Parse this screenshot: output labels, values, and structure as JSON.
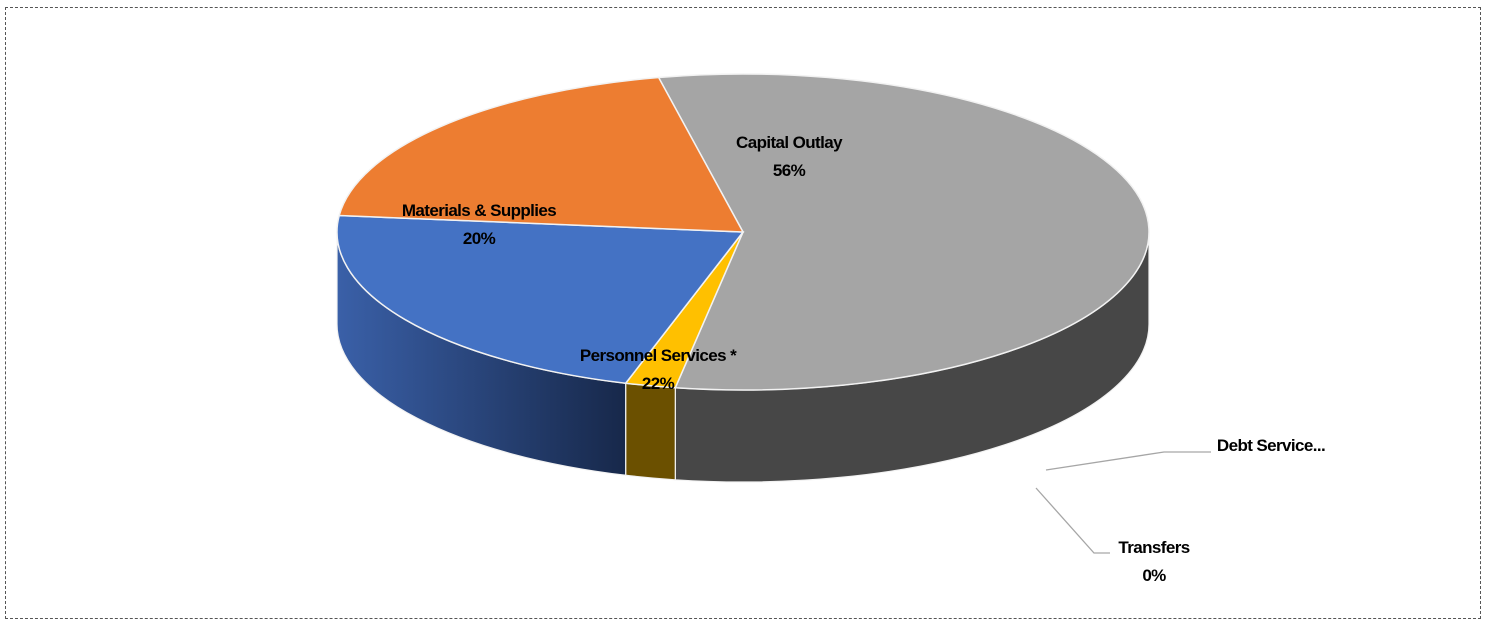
{
  "chart_data": {
    "type": "pie",
    "style": "3d",
    "categories": [
      "Capital Outlay",
      "Debt Service...",
      "Transfers",
      "Personnel Services *",
      "Materials & Supplies"
    ],
    "values": [
      56,
      2,
      0,
      22,
      20
    ],
    "series": [
      {
        "slices": [
          {
            "label": "Capital Outlay",
            "percent_label": "56%",
            "value": 56,
            "color": "#a5a5a5",
            "side_color": "#474747"
          },
          {
            "label": "Debt Service...",
            "percent_label": "",
            "value": 2,
            "color": "#ffc000",
            "side_color": "#6b5000"
          },
          {
            "label": "Transfers",
            "percent_label": "0%",
            "value": 0,
            "color": "#5b9bd5",
            "side_color": "#2e4e6b"
          },
          {
            "label": "Personnel Services *",
            "percent_label": "22%",
            "value": 22,
            "color": "#4472c4",
            "side_color": "#223a66"
          },
          {
            "label": "Materials & Supplies",
            "percent_label": "20%",
            "value": 20,
            "color": "#ed7d31",
            "side_color": "#c0612a"
          }
        ]
      }
    ],
    "legend": "none",
    "data_labels": "category-and-percent"
  }
}
